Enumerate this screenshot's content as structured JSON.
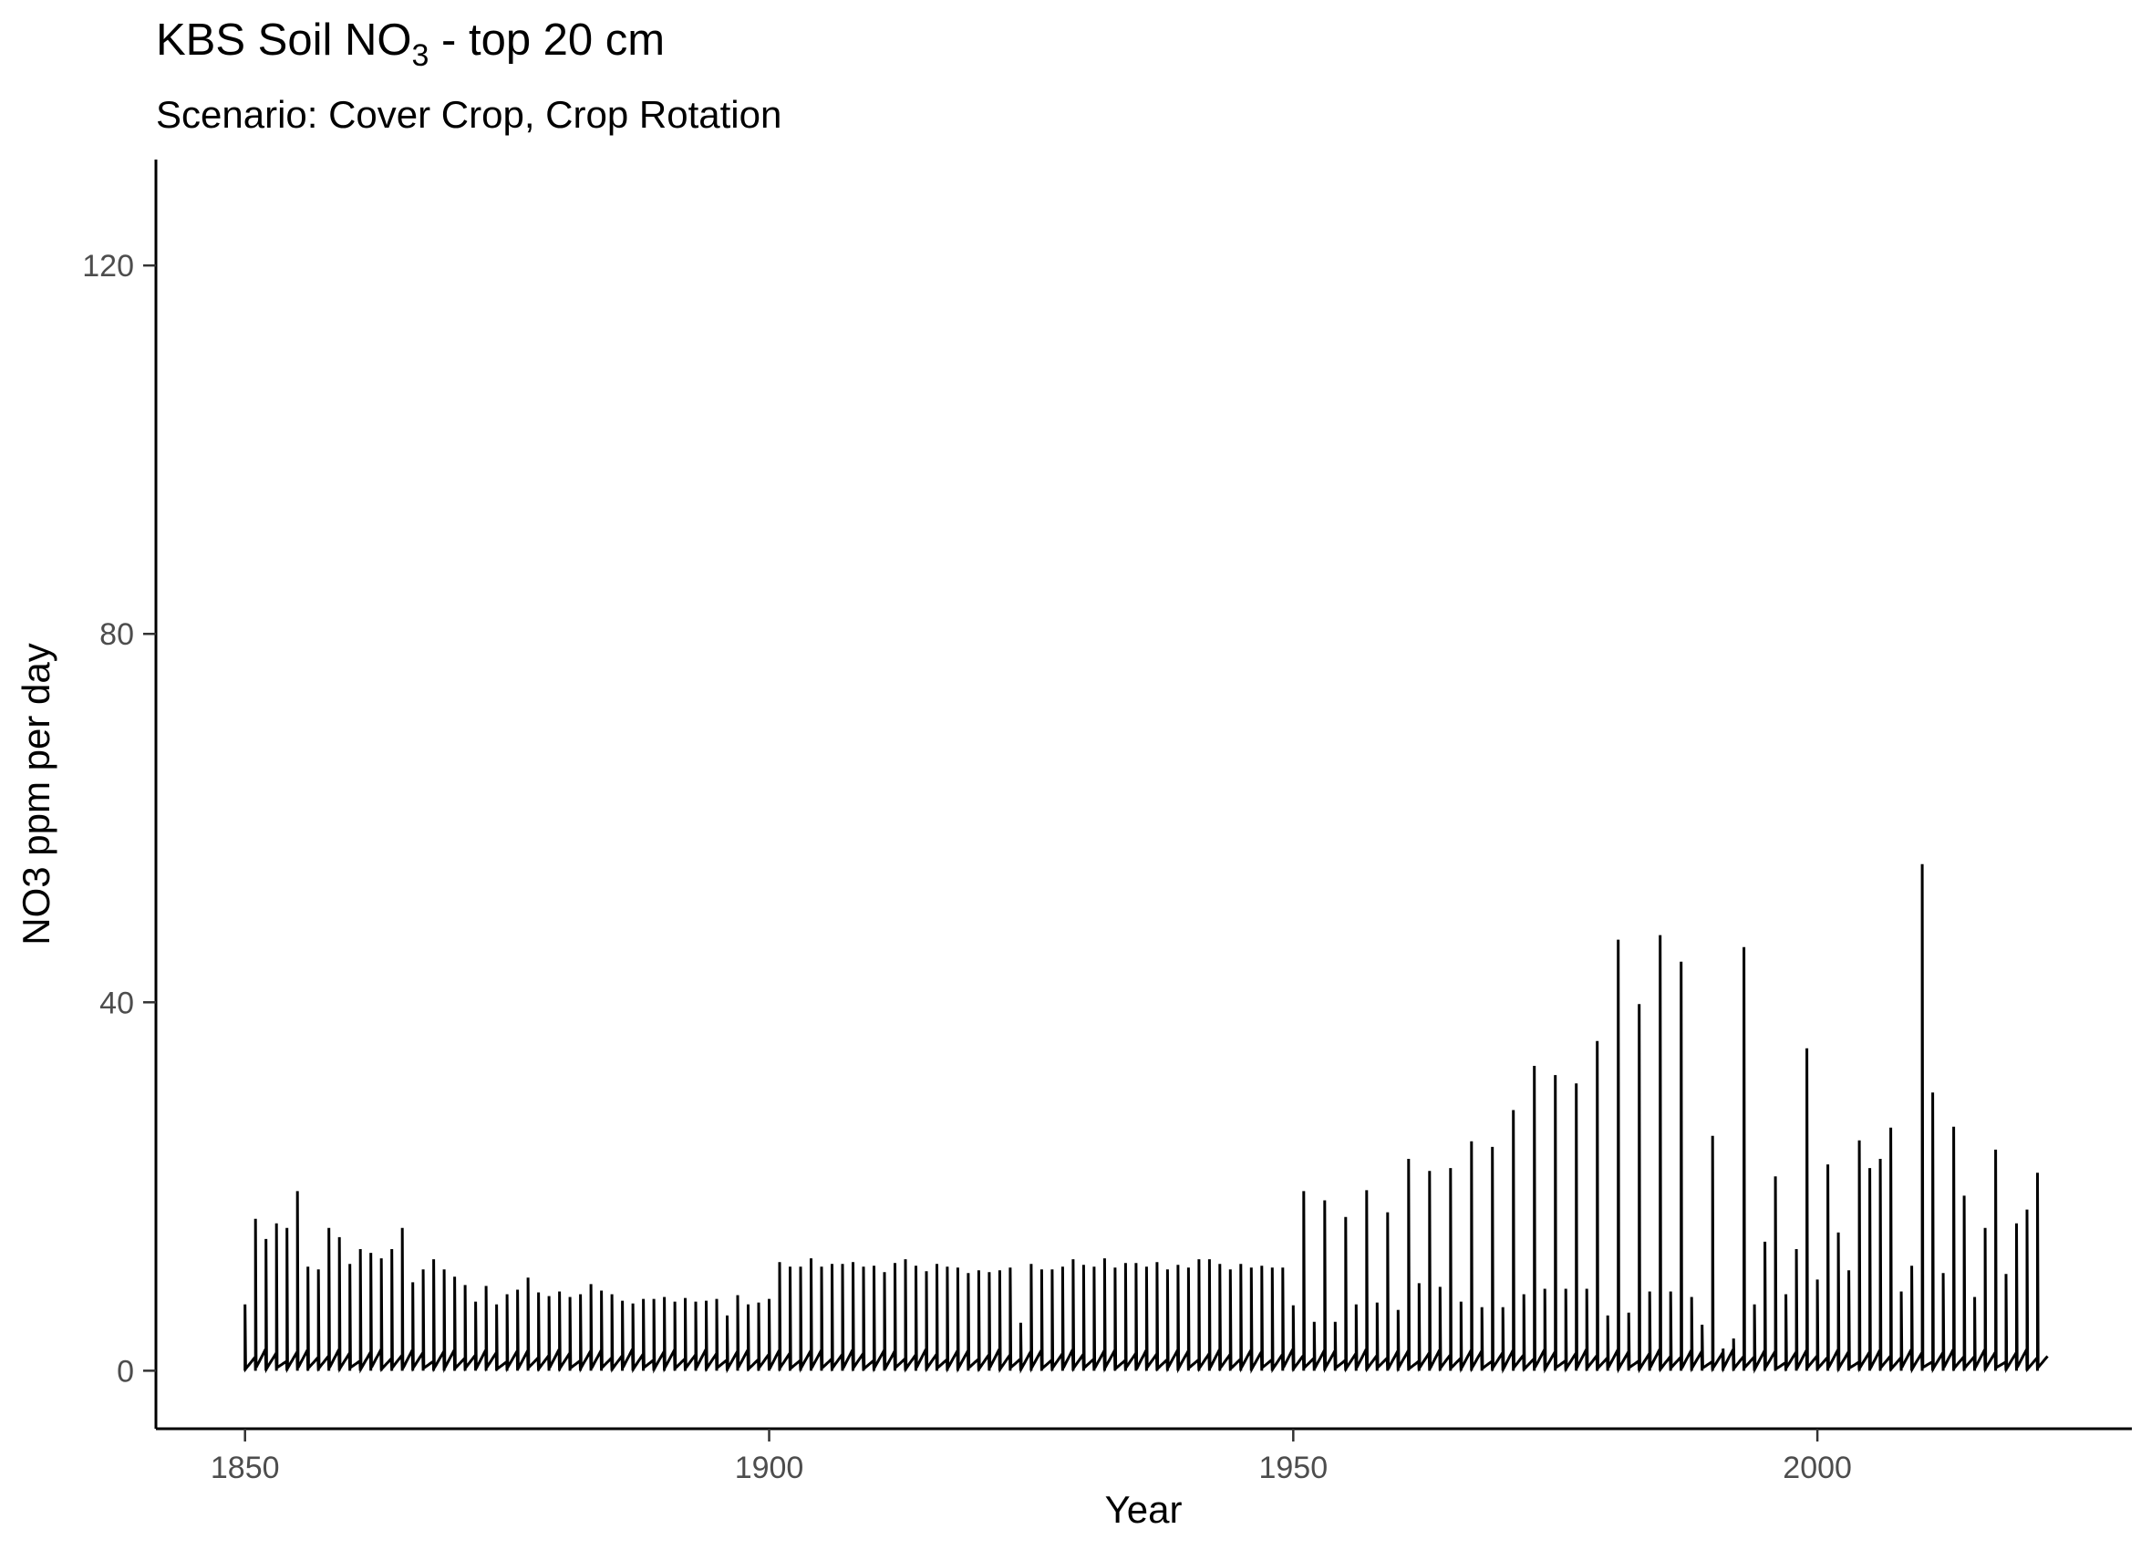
{
  "chart_data": {
    "type": "line",
    "title": "KBS Soil NO",
    "title_subscript": "3",
    "title_suffix": " - top 20 cm",
    "subtitle": "Scenario: Cover Crop, Crop Rotation",
    "xlabel": "Year",
    "ylabel": "NO3 ppm per day",
    "xlim": [
      1841.5,
      2030
    ],
    "ylim": [
      -6.3,
      131.5
    ],
    "x_ticks": [
      1850,
      1900,
      1950,
      2000
    ],
    "y_ticks": [
      0,
      40,
      80,
      120
    ],
    "grid": false,
    "line_color": "#000000",
    "series": [
      {
        "annual_peaks": [
          {
            "year": 1850.0,
            "peak": 7.2
          },
          {
            "year": 1851.0,
            "peak": 16.5
          },
          {
            "year": 1852.0,
            "peak": 14.3
          },
          {
            "year": 1853.0,
            "peak": 16.0
          },
          {
            "year": 1854.0,
            "peak": 15.5
          },
          {
            "year": 1855.0,
            "peak": 19.5
          },
          {
            "year": 1856.0,
            "peak": 11.3
          },
          {
            "year": 1857.0,
            "peak": 11.0
          },
          {
            "year": 1858.0,
            "peak": 15.5
          },
          {
            "year": 1859.0,
            "peak": 14.5
          },
          {
            "year": 1860.0,
            "peak": 11.6
          },
          {
            "year": 1861.0,
            "peak": 13.2
          },
          {
            "year": 1862.0,
            "peak": 12.8
          },
          {
            "year": 1863.0,
            "peak": 12.2
          },
          {
            "year": 1864.0,
            "peak": 13.2
          },
          {
            "year": 1865.0,
            "peak": 15.5
          },
          {
            "year": 1866.0,
            "peak": 9.6
          },
          {
            "year": 1867.0,
            "peak": 11.0
          },
          {
            "year": 1868.0,
            "peak": 12.1
          },
          {
            "year": 1869.0,
            "peak": 11.0
          },
          {
            "year": 1870.0,
            "peak": 10.2
          },
          {
            "year": 1871.0,
            "peak": 9.3
          },
          {
            "year": 1872.0,
            "peak": 7.5
          },
          {
            "year": 1873.0,
            "peak": 9.2
          },
          {
            "year": 1874.0,
            "peak": 7.2
          },
          {
            "year": 1875.0,
            "peak": 8.3
          },
          {
            "year": 1876.0,
            "peak": 8.8
          },
          {
            "year": 1877.0,
            "peak": 10.1
          },
          {
            "year": 1878.0,
            "peak": 8.5
          },
          {
            "year": 1879.0,
            "peak": 8.1
          },
          {
            "year": 1880.0,
            "peak": 8.6
          },
          {
            "year": 1881.0,
            "peak": 8.0
          },
          {
            "year": 1882.0,
            "peak": 8.3
          },
          {
            "year": 1883.0,
            "peak": 9.4
          },
          {
            "year": 1884.0,
            "peak": 8.7
          },
          {
            "year": 1885.0,
            "peak": 8.3
          },
          {
            "year": 1886.0,
            "peak": 7.6
          },
          {
            "year": 1887.0,
            "peak": 7.3
          },
          {
            "year": 1888.0,
            "peak": 7.8
          },
          {
            "year": 1889.0,
            "peak": 7.8
          },
          {
            "year": 1890.0,
            "peak": 8.0
          },
          {
            "year": 1891.0,
            "peak": 7.5
          },
          {
            "year": 1892.0,
            "peak": 7.9
          },
          {
            "year": 1893.0,
            "peak": 7.5
          },
          {
            "year": 1894.0,
            "peak": 7.6
          },
          {
            "year": 1895.0,
            "peak": 7.8
          },
          {
            "year": 1896.0,
            "peak": 6.0
          },
          {
            "year": 1897.0,
            "peak": 8.2
          },
          {
            "year": 1898.0,
            "peak": 7.2
          },
          {
            "year": 1899.0,
            "peak": 7.4
          },
          {
            "year": 1900.0,
            "peak": 7.8
          },
          {
            "year": 1901.0,
            "peak": 11.8
          },
          {
            "year": 1902.0,
            "peak": 11.3
          },
          {
            "year": 1903.0,
            "peak": 11.3
          },
          {
            "year": 1904.0,
            "peak": 12.2
          },
          {
            "year": 1905.0,
            "peak": 11.3
          },
          {
            "year": 1906.0,
            "peak": 11.6
          },
          {
            "year": 1907.0,
            "peak": 11.6
          },
          {
            "year": 1908.0,
            "peak": 11.8
          },
          {
            "year": 1909.0,
            "peak": 11.3
          },
          {
            "year": 1910.0,
            "peak": 11.4
          },
          {
            "year": 1911.0,
            "peak": 10.7
          },
          {
            "year": 1912.0,
            "peak": 11.7
          },
          {
            "year": 1913.0,
            "peak": 12.1
          },
          {
            "year": 1914.0,
            "peak": 11.4
          },
          {
            "year": 1915.0,
            "peak": 10.8
          },
          {
            "year": 1916.0,
            "peak": 11.6
          },
          {
            "year": 1917.0,
            "peak": 11.3
          },
          {
            "year": 1918.0,
            "peak": 11.2
          },
          {
            "year": 1919.0,
            "peak": 10.6
          },
          {
            "year": 1920.0,
            "peak": 10.9
          },
          {
            "year": 1921.0,
            "peak": 10.7
          },
          {
            "year": 1922.0,
            "peak": 10.9
          },
          {
            "year": 1923.0,
            "peak": 11.2
          },
          {
            "year": 1924.0,
            "peak": 5.2
          },
          {
            "year": 1925.0,
            "peak": 11.6
          },
          {
            "year": 1926.0,
            "peak": 11.0
          },
          {
            "year": 1927.0,
            "peak": 11.0
          },
          {
            "year": 1928.0,
            "peak": 11.3
          },
          {
            "year": 1929.0,
            "peak": 12.1
          },
          {
            "year": 1930.0,
            "peak": 11.5
          },
          {
            "year": 1931.0,
            "peak": 11.3
          },
          {
            "year": 1932.0,
            "peak": 12.2
          },
          {
            "year": 1933.0,
            "peak": 11.2
          },
          {
            "year": 1934.0,
            "peak": 11.7
          },
          {
            "year": 1935.0,
            "peak": 11.7
          },
          {
            "year": 1936.0,
            "peak": 11.3
          },
          {
            "year": 1937.0,
            "peak": 11.8
          },
          {
            "year": 1938.0,
            "peak": 11.0
          },
          {
            "year": 1939.0,
            "peak": 11.5
          },
          {
            "year": 1940.0,
            "peak": 11.2
          },
          {
            "year": 1941.0,
            "peak": 12.1
          },
          {
            "year": 1942.0,
            "peak": 12.1
          },
          {
            "year": 1943.0,
            "peak": 11.6
          },
          {
            "year": 1944.0,
            "peak": 11.0
          },
          {
            "year": 1945.0,
            "peak": 11.6
          },
          {
            "year": 1946.0,
            "peak": 11.2
          },
          {
            "year": 1947.0,
            "peak": 11.4
          },
          {
            "year": 1948.0,
            "peak": 11.2
          },
          {
            "year": 1949.0,
            "peak": 11.2
          },
          {
            "year": 1950.0,
            "peak": 7.1
          },
          {
            "year": 1951.0,
            "peak": 19.5
          },
          {
            "year": 1952.0,
            "peak": 5.3
          },
          {
            "year": 1953.0,
            "peak": 18.5
          },
          {
            "year": 1954.0,
            "peak": 5.3
          },
          {
            "year": 1955.0,
            "peak": 16.7
          },
          {
            "year": 1956.0,
            "peak": 7.2
          },
          {
            "year": 1957.0,
            "peak": 19.6
          },
          {
            "year": 1958.0,
            "peak": 7.4
          },
          {
            "year": 1959.0,
            "peak": 17.2
          },
          {
            "year": 1960.0,
            "peak": 6.6
          },
          {
            "year": 1961.0,
            "peak": 23.0
          },
          {
            "year": 1962.0,
            "peak": 9.5
          },
          {
            "year": 1963.0,
            "peak": 21.7
          },
          {
            "year": 1964.0,
            "peak": 9.1
          },
          {
            "year": 1965.0,
            "peak": 22.0
          },
          {
            "year": 1966.0,
            "peak": 7.5
          },
          {
            "year": 1967.0,
            "peak": 24.9
          },
          {
            "year": 1968.0,
            "peak": 6.9
          },
          {
            "year": 1969.0,
            "peak": 24.3
          },
          {
            "year": 1970.0,
            "peak": 6.9
          },
          {
            "year": 1971.0,
            "peak": 28.3
          },
          {
            "year": 1972.0,
            "peak": 8.3
          },
          {
            "year": 1973.0,
            "peak": 33.1
          },
          {
            "year": 1974.0,
            "peak": 8.9
          },
          {
            "year": 1975.0,
            "peak": 32.1
          },
          {
            "year": 1976.0,
            "peak": 8.9
          },
          {
            "year": 1977.0,
            "peak": 31.2
          },
          {
            "year": 1978.0,
            "peak": 8.9
          },
          {
            "year": 1979.0,
            "peak": 35.8
          },
          {
            "year": 1980.0,
            "peak": 6.0
          },
          {
            "year": 1981.0,
            "peak": 46.8
          },
          {
            "year": 1982.0,
            "peak": 6.3
          },
          {
            "year": 1983.0,
            "peak": 39.8
          },
          {
            "year": 1984.0,
            "peak": 8.6
          },
          {
            "year": 1985.0,
            "peak": 47.3
          },
          {
            "year": 1986.0,
            "peak": 8.6
          },
          {
            "year": 1987.0,
            "peak": 44.4
          },
          {
            "year": 1988.0,
            "peak": 8.0
          },
          {
            "year": 1989.0,
            "peak": 5.0
          },
          {
            "year": 1990.0,
            "peak": 25.5
          },
          {
            "year": 1991.0,
            "peak": 2.4
          },
          {
            "year": 1992.0,
            "peak": 3.5
          },
          {
            "year": 1993.0,
            "peak": 46.0
          },
          {
            "year": 1994.0,
            "peak": 7.2
          },
          {
            "year": 1995.0,
            "peak": 14.0
          },
          {
            "year": 1996.0,
            "peak": 21.1
          },
          {
            "year": 1997.0,
            "peak": 8.3
          },
          {
            "year": 1998.0,
            "peak": 13.2
          },
          {
            "year": 1999.0,
            "peak": 35.0
          },
          {
            "year": 2000.0,
            "peak": 9.9
          },
          {
            "year": 2001.0,
            "peak": 22.4
          },
          {
            "year": 2002.0,
            "peak": 15.0
          },
          {
            "year": 2003.0,
            "peak": 10.9
          },
          {
            "year": 2004.0,
            "peak": 25.0
          },
          {
            "year": 2005.0,
            "peak": 22.0
          },
          {
            "year": 2006.0,
            "peak": 23.0
          },
          {
            "year": 2007.0,
            "peak": 26.4
          },
          {
            "year": 2008.0,
            "peak": 8.6
          },
          {
            "year": 2009.0,
            "peak": 11.4
          },
          {
            "year": 2010.0,
            "peak": 55.0
          },
          {
            "year": 2011.0,
            "peak": 30.2
          },
          {
            "year": 2012.0,
            "peak": 10.6
          },
          {
            "year": 2013.0,
            "peak": 26.5
          },
          {
            "year": 2014.0,
            "peak": 19.0
          },
          {
            "year": 2015.0,
            "peak": 8.0
          },
          {
            "year": 2016.0,
            "peak": 15.5
          },
          {
            "year": 2017.0,
            "peak": 24.0
          },
          {
            "year": 2018.0,
            "peak": 10.5
          },
          {
            "year": 2019.0,
            "peak": 16.0
          },
          {
            "year": 2020.0,
            "peak": 17.5
          },
          {
            "year": 2021.0,
            "peak": 21.5
          }
        ]
      }
    ]
  }
}
